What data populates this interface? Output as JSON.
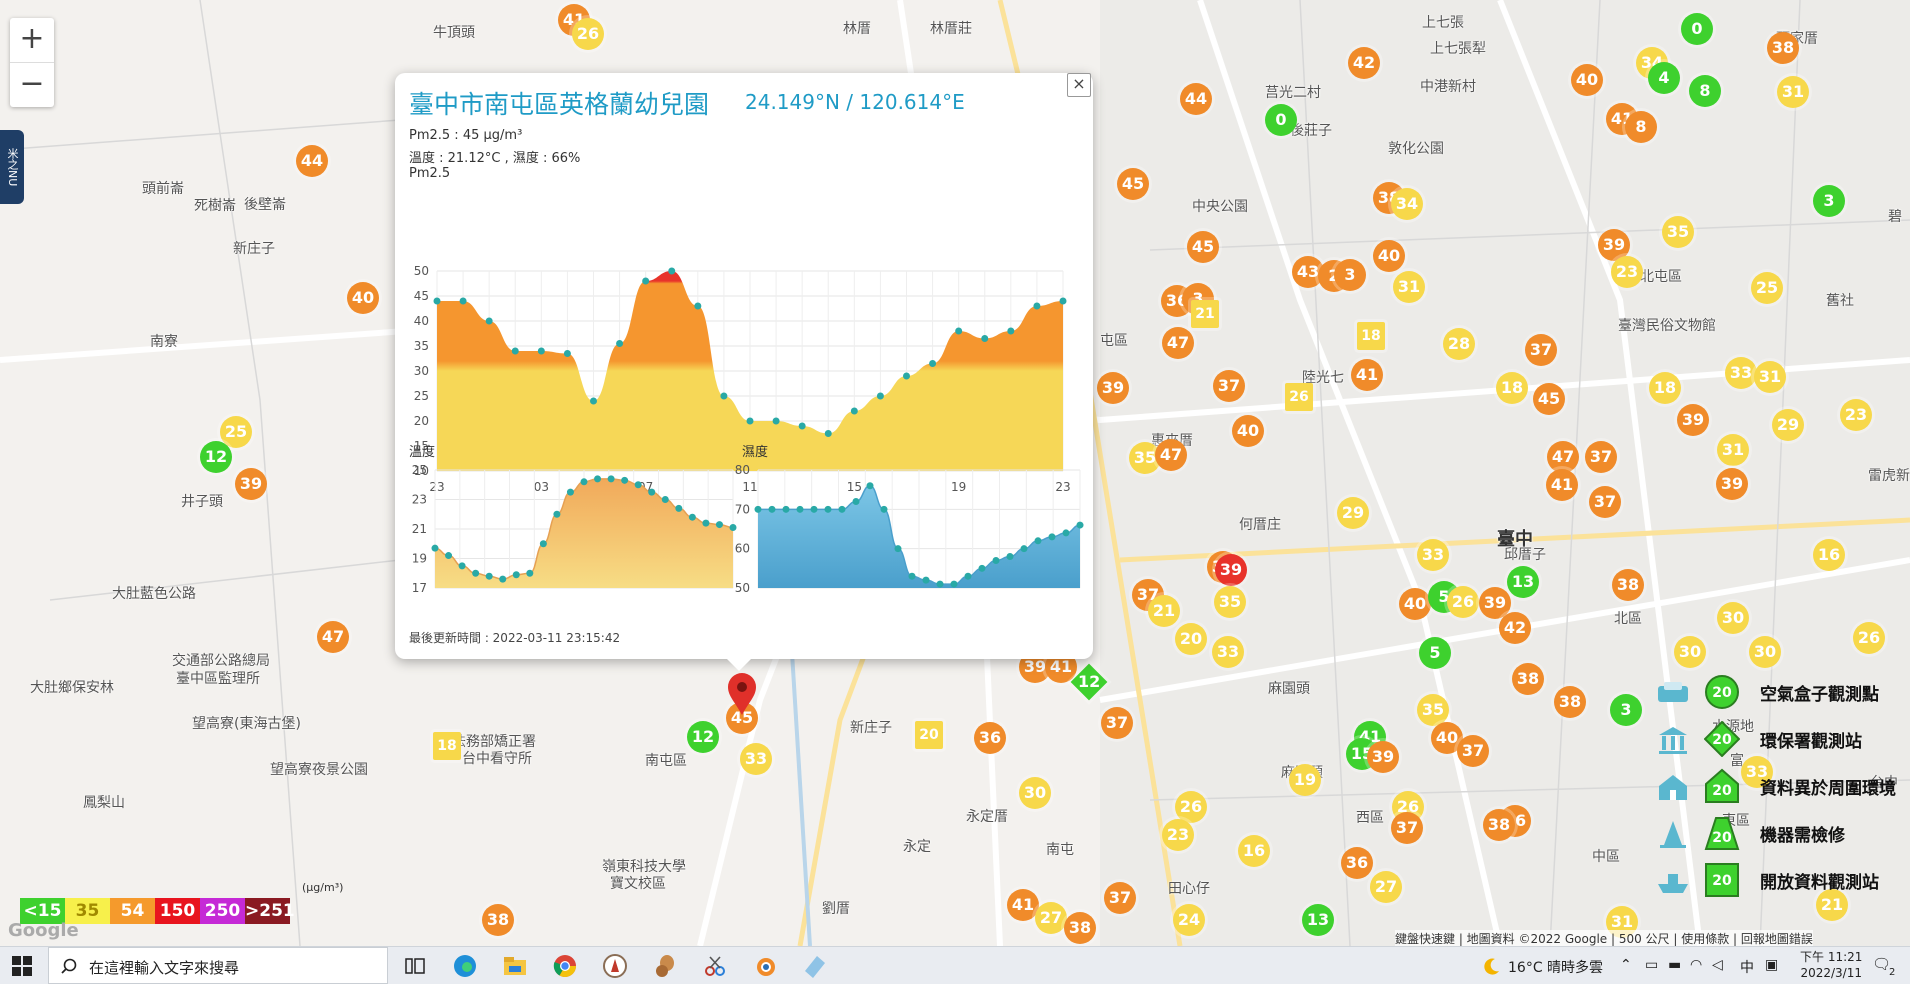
{
  "map": {
    "zoom_in": "+",
    "zoom_out": "−",
    "side_tab": "米之NU",
    "places": [
      {
        "t": "牛頂頭",
        "x": 433,
        "y": 22
      },
      {
        "t": "林厝",
        "x": 843,
        "y": 18
      },
      {
        "t": "林厝莊",
        "x": 930,
        "y": 18
      },
      {
        "t": "上七張",
        "x": 1422,
        "y": 12
      },
      {
        "t": "頭家厝",
        "x": 1776,
        "y": 28
      },
      {
        "t": "上七張犁",
        "x": 1430,
        "y": 38
      },
      {
        "t": "中港新村",
        "x": 1420,
        "y": 76
      },
      {
        "t": "莒光二村",
        "x": 1265,
        "y": 82
      },
      {
        "t": "後莊子",
        "x": 1290,
        "y": 120
      },
      {
        "t": "敦化公園",
        "x": 1388,
        "y": 138
      },
      {
        "t": "頭前崙",
        "x": 142,
        "y": 178
      },
      {
        "t": "死樹崙",
        "x": 194,
        "y": 195
      },
      {
        "t": "後壁崙",
        "x": 244,
        "y": 194
      },
      {
        "t": "中央公園",
        "x": 1192,
        "y": 196
      },
      {
        "t": "新庄子",
        "x": 233,
        "y": 238
      },
      {
        "t": "北屯區",
        "x": 1640,
        "y": 266
      },
      {
        "t": "舊社",
        "x": 1826,
        "y": 290
      },
      {
        "t": "南寮",
        "x": 150,
        "y": 331
      },
      {
        "t": "屯區",
        "x": 1100,
        "y": 330
      },
      {
        "t": "臺灣民俗文物館",
        "x": 1618,
        "y": 315
      },
      {
        "t": "陸光七",
        "x": 1302,
        "y": 367
      },
      {
        "t": "惠來厝",
        "x": 1151,
        "y": 430
      },
      {
        "t": "何厝庄",
        "x": 1239,
        "y": 514
      },
      {
        "t": "井子頭",
        "x": 181,
        "y": 491
      },
      {
        "t": "臺中",
        "x": 1497,
        "y": 525,
        "big": true
      },
      {
        "t": "大肚藍色公路",
        "x": 112,
        "y": 583
      },
      {
        "t": "邱厝子",
        "x": 1504,
        "y": 544
      },
      {
        "t": "北區",
        "x": 1614,
        "y": 608
      },
      {
        "t": "交通部公路總局",
        "x": 172,
        "y": 650
      },
      {
        "t": "臺中區監理所",
        "x": 176,
        "y": 668
      },
      {
        "t": "大肚鄉保安林",
        "x": 30,
        "y": 677
      },
      {
        "t": "望高寮(東海古堡)",
        "x": 192,
        "y": 713
      },
      {
        "t": "法務部矯正署",
        "x": 452,
        "y": 731
      },
      {
        "t": "台中看守所",
        "x": 462,
        "y": 748
      },
      {
        "t": "南屯區",
        "x": 645,
        "y": 750
      },
      {
        "t": "新庄子",
        "x": 850,
        "y": 717
      },
      {
        "t": "望高寮夜景公園",
        "x": 270,
        "y": 759
      },
      {
        "t": "鳳梨山",
        "x": 83,
        "y": 792
      },
      {
        "t": "麻園頭",
        "x": 1268,
        "y": 678
      },
      {
        "t": "麻園頭",
        "x": 1281,
        "y": 762
      },
      {
        "t": "永定厝",
        "x": 966,
        "y": 806
      },
      {
        "t": "永定",
        "x": 903,
        "y": 836
      },
      {
        "t": "南屯",
        "x": 1046,
        "y": 839
      },
      {
        "t": "西區",
        "x": 1356,
        "y": 807
      },
      {
        "t": "中區",
        "x": 1592,
        "y": 846
      },
      {
        "t": "田心仔",
        "x": 1168,
        "y": 878
      },
      {
        "t": "嶺東科技大學",
        "x": 602,
        "y": 856
      },
      {
        "t": "寶文校區",
        "x": 610,
        "y": 873
      },
      {
        "t": "劉厝",
        "x": 822,
        "y": 898
      },
      {
        "t": "東區",
        "x": 1722,
        "y": 810
      },
      {
        "t": "水源地",
        "x": 1712,
        "y": 716
      },
      {
        "t": "富",
        "x": 1730,
        "y": 750
      },
      {
        "t": "雷虎新",
        "x": 1868,
        "y": 465
      },
      {
        "t": "碧",
        "x": 1888,
        "y": 206
      },
      {
        "t": "台中",
        "x": 1870,
        "y": 772
      }
    ],
    "markers": [
      {
        "v": "41",
        "x": 574,
        "y": 20,
        "c": "orange"
      },
      {
        "v": "26",
        "x": 588,
        "y": 34,
        "c": "yellow"
      },
      {
        "v": "0",
        "x": 1697,
        "y": 29,
        "c": "green"
      },
      {
        "v": "42",
        "x": 1364,
        "y": 63,
        "c": "orange"
      },
      {
        "v": "40",
        "x": 1587,
        "y": 80,
        "c": "orange"
      },
      {
        "v": "34",
        "x": 1652,
        "y": 63,
        "c": "yellow"
      },
      {
        "v": "4",
        "x": 1664,
        "y": 78,
        "c": "green"
      },
      {
        "v": "8",
        "x": 1705,
        "y": 91,
        "c": "green"
      },
      {
        "v": "31",
        "x": 1793,
        "y": 92,
        "c": "yellow"
      },
      {
        "v": "38",
        "x": 1783,
        "y": 48,
        "c": "orange"
      },
      {
        "v": "44",
        "x": 1196,
        "y": 99,
        "c": "orange"
      },
      {
        "v": "0",
        "x": 1281,
        "y": 120,
        "c": "green"
      },
      {
        "v": "41",
        "x": 1622,
        "y": 119,
        "c": "orange"
      },
      {
        "v": "8",
        "x": 1641,
        "y": 127,
        "c": "orange"
      },
      {
        "v": "44",
        "x": 312,
        "y": 161,
        "c": "orange"
      },
      {
        "v": "45",
        "x": 1133,
        "y": 184,
        "c": "orange"
      },
      {
        "v": "38",
        "x": 1389,
        "y": 198,
        "c": "orange"
      },
      {
        "v": "34",
        "x": 1407,
        "y": 204,
        "c": "yellow"
      },
      {
        "v": "3",
        "x": 1829,
        "y": 201,
        "c": "green"
      },
      {
        "v": "35",
        "x": 1678,
        "y": 232,
        "c": "yellow"
      },
      {
        "v": "45",
        "x": 1203,
        "y": 247,
        "c": "orange"
      },
      {
        "v": "40",
        "x": 1389,
        "y": 256,
        "c": "orange"
      },
      {
        "v": "39",
        "x": 1614,
        "y": 245,
        "c": "orange"
      },
      {
        "v": "43",
        "x": 1308,
        "y": 272,
        "c": "orange"
      },
      {
        "v": "2",
        "x": 1334,
        "y": 276,
        "c": "orange"
      },
      {
        "v": "3",
        "x": 1350,
        "y": 275,
        "c": "orange"
      },
      {
        "v": "31",
        "x": 1409,
        "y": 287,
        "c": "yellow"
      },
      {
        "v": "23",
        "x": 1627,
        "y": 272,
        "c": "yellow"
      },
      {
        "v": "25",
        "x": 1767,
        "y": 288,
        "c": "yellow"
      },
      {
        "v": "40",
        "x": 363,
        "y": 298,
        "c": "orange"
      },
      {
        "v": "36",
        "x": 1177,
        "y": 301,
        "c": "orange"
      },
      {
        "v": "3",
        "x": 1198,
        "y": 299,
        "c": "orange"
      },
      {
        "v": "21",
        "x": 1205,
        "y": 314,
        "c": "yellow",
        "shape": "sq"
      },
      {
        "v": "47",
        "x": 1178,
        "y": 343,
        "c": "orange"
      },
      {
        "v": "18",
        "x": 1371,
        "y": 336,
        "c": "yellow",
        "shape": "sq"
      },
      {
        "v": "28",
        "x": 1459,
        "y": 344,
        "c": "yellow"
      },
      {
        "v": "37",
        "x": 1541,
        "y": 350,
        "c": "orange"
      },
      {
        "v": "41",
        "x": 1367,
        "y": 375,
        "c": "orange"
      },
      {
        "v": "26",
        "x": 1299,
        "y": 397,
        "c": "yellow",
        "shape": "sq"
      },
      {
        "v": "33",
        "x": 1741,
        "y": 373,
        "c": "yellow"
      },
      {
        "v": "31",
        "x": 1770,
        "y": 377,
        "c": "yellow"
      },
      {
        "v": "18",
        "x": 1512,
        "y": 388,
        "c": "yellow"
      },
      {
        "v": "45",
        "x": 1549,
        "y": 399,
        "c": "orange"
      },
      {
        "v": "18",
        "x": 1665,
        "y": 388,
        "c": "yellow"
      },
      {
        "v": "39",
        "x": 1113,
        "y": 388,
        "c": "orange"
      },
      {
        "v": "37",
        "x": 1229,
        "y": 386,
        "c": "orange"
      },
      {
        "v": "40",
        "x": 1248,
        "y": 431,
        "c": "orange"
      },
      {
        "v": "39",
        "x": 1693,
        "y": 420,
        "c": "orange"
      },
      {
        "v": "29",
        "x": 1788,
        "y": 425,
        "c": "yellow"
      },
      {
        "v": "23",
        "x": 1856,
        "y": 415,
        "c": "yellow"
      },
      {
        "v": "25",
        "x": 236,
        "y": 432,
        "c": "yellow"
      },
      {
        "v": "12",
        "x": 216,
        "y": 457,
        "c": "green"
      },
      {
        "v": "35",
        "x": 1145,
        "y": 458,
        "c": "yellow"
      },
      {
        "v": "47",
        "x": 1171,
        "y": 455,
        "c": "orange"
      },
      {
        "v": "47",
        "x": 1563,
        "y": 457,
        "c": "orange"
      },
      {
        "v": "37",
        "x": 1601,
        "y": 457,
        "c": "orange"
      },
      {
        "v": "31",
        "x": 1733,
        "y": 450,
        "c": "yellow"
      },
      {
        "v": "39",
        "x": 251,
        "y": 484,
        "c": "orange"
      },
      {
        "v": "41",
        "x": 1562,
        "y": 485,
        "c": "orange"
      },
      {
        "v": "39",
        "x": 1732,
        "y": 484,
        "c": "orange"
      },
      {
        "v": "37",
        "x": 1605,
        "y": 502,
        "c": "orange"
      },
      {
        "v": "29",
        "x": 1353,
        "y": 513,
        "c": "yellow"
      },
      {
        "v": "33",
        "x": 1433,
        "y": 555,
        "c": "yellow"
      },
      {
        "v": "16",
        "x": 1829,
        "y": 555,
        "c": "yellow"
      },
      {
        "v": "39",
        "x": 1223,
        "y": 567,
        "c": "orange"
      },
      {
        "v": "39",
        "x": 1231,
        "y": 570,
        "c": "red"
      },
      {
        "v": "13",
        "x": 1523,
        "y": 582,
        "c": "green"
      },
      {
        "v": "38",
        "x": 1628,
        "y": 585,
        "c": "orange"
      },
      {
        "v": "37",
        "x": 1148,
        "y": 595,
        "c": "orange"
      },
      {
        "v": "35",
        "x": 1230,
        "y": 602,
        "c": "yellow"
      },
      {
        "v": "21",
        "x": 1164,
        "y": 611,
        "c": "yellow"
      },
      {
        "v": "40",
        "x": 1415,
        "y": 604,
        "c": "orange"
      },
      {
        "v": "5",
        "x": 1444,
        "y": 597,
        "c": "green"
      },
      {
        "v": "26",
        "x": 1463,
        "y": 602,
        "c": "yellow"
      },
      {
        "v": "39",
        "x": 1495,
        "y": 603,
        "c": "orange"
      },
      {
        "v": "42",
        "x": 1515,
        "y": 628,
        "c": "orange"
      },
      {
        "v": "30",
        "x": 1733,
        "y": 618,
        "c": "yellow"
      },
      {
        "v": "26",
        "x": 1869,
        "y": 638,
        "c": "yellow"
      },
      {
        "v": "47",
        "x": 333,
        "y": 637,
        "c": "orange"
      },
      {
        "v": "20",
        "x": 1191,
        "y": 639,
        "c": "yellow"
      },
      {
        "v": "33",
        "x": 1228,
        "y": 652,
        "c": "yellow"
      },
      {
        "v": "5",
        "x": 1435,
        "y": 653,
        "c": "green"
      },
      {
        "v": "30",
        "x": 1690,
        "y": 652,
        "c": "yellow"
      },
      {
        "v": "30",
        "x": 1765,
        "y": 652,
        "c": "yellow"
      },
      {
        "v": "39",
        "x": 1035,
        "y": 667,
        "c": "orange"
      },
      {
        "v": "41",
        "x": 1061,
        "y": 667,
        "c": "orange"
      },
      {
        "v": "12",
        "x": 1089,
        "y": 682,
        "c": "green",
        "shape": "diamond"
      },
      {
        "v": "38",
        "x": 1528,
        "y": 679,
        "c": "orange"
      },
      {
        "v": "35",
        "x": 1433,
        "y": 710,
        "c": "yellow"
      },
      {
        "v": "38",
        "x": 1570,
        "y": 702,
        "c": "orange"
      },
      {
        "v": "3",
        "x": 1626,
        "y": 710,
        "c": "green"
      },
      {
        "v": "45",
        "x": 742,
        "y": 718,
        "c": "orange"
      },
      {
        "v": "37",
        "x": 1117,
        "y": 723,
        "c": "orange"
      },
      {
        "v": "18",
        "x": 447,
        "y": 746,
        "c": "yellow",
        "shape": "sq"
      },
      {
        "v": "12",
        "x": 703,
        "y": 737,
        "c": "green"
      },
      {
        "v": "20",
        "x": 929,
        "y": 735,
        "c": "yellow",
        "shape": "sq"
      },
      {
        "v": "36",
        "x": 990,
        "y": 738,
        "c": "orange"
      },
      {
        "v": "41",
        "x": 1370,
        "y": 737,
        "c": "green"
      },
      {
        "v": "40",
        "x": 1447,
        "y": 738,
        "c": "orange"
      },
      {
        "v": "15",
        "x": 1362,
        "y": 754,
        "c": "green"
      },
      {
        "v": "39",
        "x": 1383,
        "y": 757,
        "c": "orange"
      },
      {
        "v": "37",
        "x": 1473,
        "y": 751,
        "c": "orange"
      },
      {
        "v": "33",
        "x": 756,
        "y": 759,
        "c": "yellow"
      },
      {
        "v": "33",
        "x": 1757,
        "y": 772,
        "c": "yellow"
      },
      {
        "v": "19",
        "x": 1305,
        "y": 780,
        "c": "yellow"
      },
      {
        "v": "30",
        "x": 1035,
        "y": 793,
        "c": "yellow"
      },
      {
        "v": "26",
        "x": 1191,
        "y": 807,
        "c": "yellow"
      },
      {
        "v": "26",
        "x": 1408,
        "y": 807,
        "c": "yellow"
      },
      {
        "v": "37",
        "x": 1407,
        "y": 828,
        "c": "orange"
      },
      {
        "v": "16",
        "x": 1515,
        "y": 821,
        "c": "orange"
      },
      {
        "v": "38",
        "x": 1499,
        "y": 825,
        "c": "orange"
      },
      {
        "v": "23",
        "x": 1178,
        "y": 835,
        "c": "yellow"
      },
      {
        "v": "16",
        "x": 1254,
        "y": 851,
        "c": "yellow"
      },
      {
        "v": "36",
        "x": 1357,
        "y": 863,
        "c": "orange"
      },
      {
        "v": "27",
        "x": 1386,
        "y": 887,
        "c": "yellow"
      },
      {
        "v": "37",
        "x": 1120,
        "y": 898,
        "c": "orange"
      },
      {
        "v": "41",
        "x": 1023,
        "y": 905,
        "c": "orange"
      },
      {
        "v": "27",
        "x": 1051,
        "y": 918,
        "c": "yellow"
      },
      {
        "v": "24",
        "x": 1189,
        "y": 920,
        "c": "yellow"
      },
      {
        "v": "38",
        "x": 1080,
        "y": 928,
        "c": "orange"
      },
      {
        "v": "13",
        "x": 1318,
        "y": 920,
        "c": "green"
      },
      {
        "v": "21",
        "x": 1832,
        "y": 905,
        "c": "yellow"
      },
      {
        "v": "31",
        "x": 1622,
        "y": 922,
        "c": "yellow"
      },
      {
        "v": "38",
        "x": 498,
        "y": 920,
        "c": "orange"
      }
    ],
    "attribution": "鍵盤快速鍵 | 地圖資料 ©2022 Google | 500 公尺 | 使用條款 | 回報地圖錯誤",
    "google": "Google"
  },
  "popup": {
    "title": "臺中市南屯區英格蘭幼兒園",
    "coord": "24.149°N / 120.614°E",
    "pm_line": "Pm2.5 : 45 μg/m³",
    "env_line": "溫度 : 21.12°C , 濕度 : 66%",
    "pm_label": "Pm2.5",
    "temp_label": "溫度",
    "hum_label": "濕度",
    "updated": "最後更新時間 : 2022-03-11 23:15:42",
    "close": "×"
  },
  "chart_data": [
    {
      "type": "area",
      "title": "Pm2.5",
      "x_ticks": [
        "23",
        "03",
        "07",
        "11",
        "15",
        "19",
        "23"
      ],
      "ylim": [
        10,
        50
      ],
      "y_ticks": [
        10,
        15,
        20,
        25,
        30,
        35,
        40,
        45,
        50
      ],
      "grid": true,
      "values": [
        44,
        44,
        40,
        34,
        34,
        33.5,
        24,
        35.5,
        48,
        50,
        43,
        25,
        20,
        20,
        19,
        17.5,
        22,
        25,
        29,
        31.5,
        38,
        36.5,
        38,
        43,
        44
      ],
      "colors": {
        "low": "#f6d757",
        "mid": "#f5962f",
        "high": "#e8332b"
      }
    },
    {
      "type": "area",
      "title": "溫度",
      "ylim": [
        17,
        25
      ],
      "y_ticks": [
        17,
        19,
        21,
        23,
        25
      ],
      "grid": true,
      "values": [
        19.7,
        19.2,
        18.5,
        18,
        17.8,
        17.6,
        17.9,
        18,
        20,
        22,
        23.5,
        24.2,
        24.4,
        24.4,
        24.3,
        24,
        23.5,
        23,
        22.4,
        21.8,
        21.4,
        21.3,
        21.1
      ],
      "color": "#f5b96c"
    },
    {
      "type": "area",
      "title": "濕度",
      "ylim": [
        50,
        80
      ],
      "y_ticks": [
        50,
        60,
        70,
        80
      ],
      "grid": true,
      "values": [
        70,
        70,
        70,
        70,
        70,
        70,
        70,
        72,
        76,
        70,
        60,
        53,
        52,
        51,
        51,
        53,
        55,
        57,
        58,
        60,
        62,
        63,
        64,
        66
      ],
      "color": "#5bb0d6"
    }
  ],
  "legend": {
    "items": [
      "空氣盒子觀測點",
      "環保署觀測站",
      "資料異於周圍環境",
      "機器需檢修",
      "開放資料觀測站"
    ],
    "badge": "20"
  },
  "pm_scale": {
    "unit": "(μg/m³)",
    "levels": [
      {
        "label": "<15",
        "color": "#3ed12e"
      },
      {
        "label": "35",
        "color": "#f7f04b"
      },
      {
        "label": "54",
        "color": "#f59a2c"
      },
      {
        "label": "150",
        "color": "#e8141e"
      },
      {
        "label": "250",
        "color": "#c52ad6"
      },
      {
        "label": ">251",
        "color": "#8a1a22"
      }
    ]
  },
  "taskbar": {
    "search_placeholder": "在這裡輸入文字來搜尋",
    "weather": "16°C  晴時多雲",
    "ime": "中",
    "time": "下午 11:21",
    "date": "2022/3/11",
    "notif": "2"
  }
}
